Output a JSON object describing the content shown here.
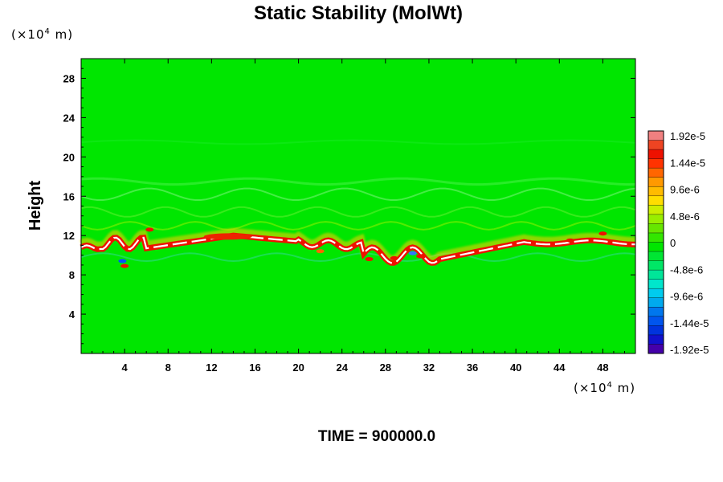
{
  "chart_data": {
    "type": "heatmap",
    "title": "Static Stability (MolWt)",
    "ylabel": "Height",
    "x_unit": "(×10",
    "x_unit_exp": "4",
    "x_unit_tail": " m)",
    "y_unit": "(×10",
    "y_unit_exp": "4",
    "y_unit_tail": " m)",
    "xlim": [
      0,
      51
    ],
    "ylim": [
      0,
      30
    ],
    "x_ticks": [
      "4",
      "8",
      "12",
      "16",
      "20",
      "24",
      "28",
      "32",
      "36",
      "40",
      "44",
      "48"
    ],
    "y_ticks": [
      "4",
      "8",
      "12",
      "16",
      "20",
      "24",
      "28"
    ],
    "colorbar": {
      "range": [
        -1.92e-05,
        1.92e-05
      ],
      "labels": [
        "1.92e-5",
        "1.44e-5",
        "9.6e-6",
        "4.8e-6",
        "0",
        "-4.8e-6",
        "-9.6e-6",
        "-1.44e-5",
        "-1.92e-5"
      ]
    },
    "background_value": 0,
    "features": [
      {
        "name": "tropopause band",
        "x_range": [
          0,
          51
        ],
        "y_center": "10–12",
        "value": "positive (≈1.44e-5 to 1.92e-5)"
      }
    ],
    "footer": "TIME = 900000.0"
  }
}
